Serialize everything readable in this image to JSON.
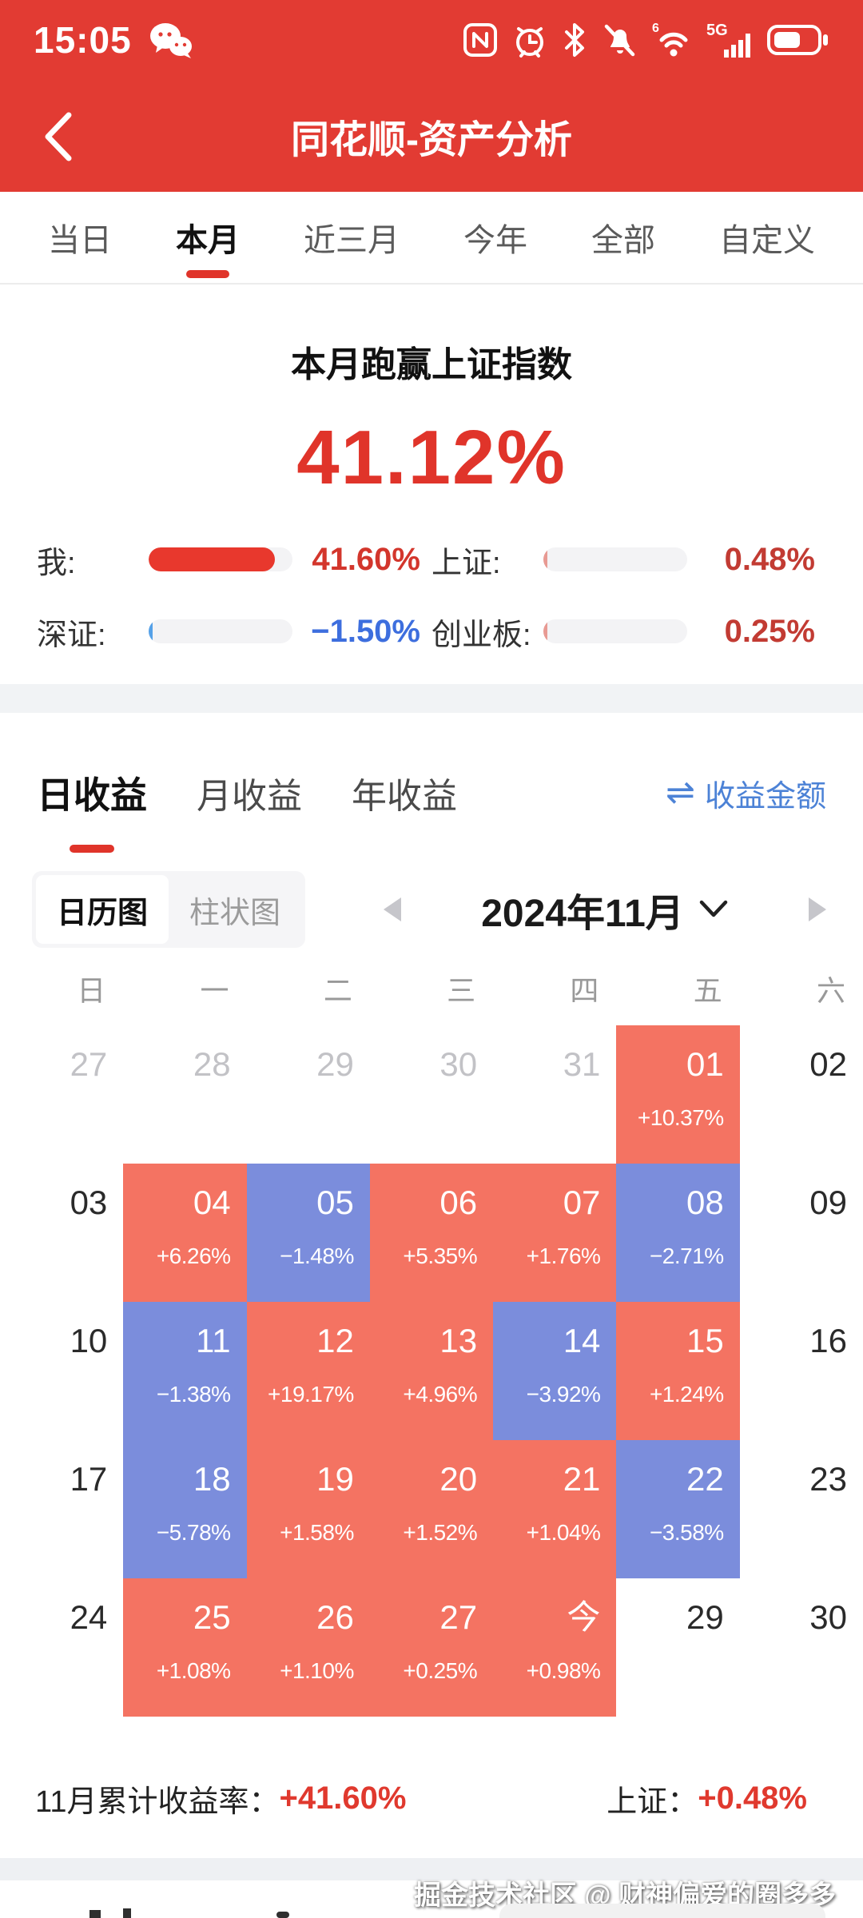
{
  "status_bar": {
    "time": "15:05",
    "icons": [
      "wechat-icon",
      "nfc-icon",
      "alarm-icon",
      "bluetooth-icon",
      "mute-icon",
      "wifi6-icon",
      "signal-5g-icon",
      "battery-icon"
    ]
  },
  "header": {
    "title": "同花顺-资产分析"
  },
  "range_tabs": [
    {
      "label": "当日",
      "active": false
    },
    {
      "label": "本月",
      "active": true
    },
    {
      "label": "近三月",
      "active": false
    },
    {
      "label": "今年",
      "active": false
    },
    {
      "label": "全部",
      "active": false
    },
    {
      "label": "自定义",
      "active": false
    }
  ],
  "hero": {
    "headline": "本月跑赢上证指数",
    "value": "41.12%"
  },
  "comparison": [
    {
      "label": "我:",
      "value": "41.60%",
      "value_color": "#d3362c",
      "bar_color": "#e8382d",
      "bar_pct": 88
    },
    {
      "label": "上证:",
      "value": "0.48%",
      "value_color": "#c23b33",
      "bar_color": "#e89a93",
      "bar_pct": 3
    },
    {
      "label": "深证:",
      "value": "−1.50%",
      "value_color": "#3d6ede",
      "bar_color": "#55a1e8",
      "bar_pct": 3
    },
    {
      "label": "创业板:",
      "value": "0.25%",
      "value_color": "#c23b33",
      "bar_color": "#e89a93",
      "bar_pct": 3
    }
  ],
  "income_section": {
    "tabs": [
      {
        "label": "日收益",
        "active": true
      },
      {
        "label": "月收益",
        "active": false
      },
      {
        "label": "年收益",
        "active": false
      }
    ],
    "amount_link": {
      "icon": "swap-icon",
      "label": "收益金额"
    }
  },
  "calendar": {
    "view_tabs": [
      {
        "label": "日历图",
        "active": true
      },
      {
        "label": "柱状图",
        "active": false
      }
    ],
    "month_label": "2024年11月",
    "weekdays": [
      "日",
      "一",
      "二",
      "三",
      "四",
      "五",
      "六"
    ],
    "cell_colors": {
      "up": "#f47362",
      "down": "#7b8ddc"
    },
    "weeks": [
      [
        {
          "day": "27",
          "type": "prev"
        },
        {
          "day": "28",
          "type": "prev"
        },
        {
          "day": "29",
          "type": "prev"
        },
        {
          "day": "30",
          "type": "prev"
        },
        {
          "day": "31",
          "type": "prev"
        },
        {
          "day": "01",
          "type": "up",
          "change": "+10.37%"
        },
        {
          "day": "02",
          "type": "plain"
        }
      ],
      [
        {
          "day": "03",
          "type": "plain"
        },
        {
          "day": "04",
          "type": "up",
          "change": "+6.26%"
        },
        {
          "day": "05",
          "type": "down",
          "change": "−1.48%"
        },
        {
          "day": "06",
          "type": "up",
          "change": "+5.35%"
        },
        {
          "day": "07",
          "type": "up",
          "change": "+1.76%"
        },
        {
          "day": "08",
          "type": "down",
          "change": "−2.71%"
        },
        {
          "day": "09",
          "type": "plain"
        }
      ],
      [
        {
          "day": "10",
          "type": "plain"
        },
        {
          "day": "11",
          "type": "down",
          "change": "−1.38%"
        },
        {
          "day": "12",
          "type": "up",
          "change": "+19.17%"
        },
        {
          "day": "13",
          "type": "up",
          "change": "+4.96%"
        },
        {
          "day": "14",
          "type": "down",
          "change": "−3.92%"
        },
        {
          "day": "15",
          "type": "up",
          "change": "+1.24%"
        },
        {
          "day": "16",
          "type": "plain"
        }
      ],
      [
        {
          "day": "17",
          "type": "plain"
        },
        {
          "day": "18",
          "type": "down",
          "change": "−5.78%"
        },
        {
          "day": "19",
          "type": "up",
          "change": "+1.58%"
        },
        {
          "day": "20",
          "type": "up",
          "change": "+1.52%"
        },
        {
          "day": "21",
          "type": "up",
          "change": "+1.04%"
        },
        {
          "day": "22",
          "type": "down",
          "change": "−3.58%"
        },
        {
          "day": "23",
          "type": "plain"
        }
      ],
      [
        {
          "day": "24",
          "type": "plain"
        },
        {
          "day": "25",
          "type": "up",
          "change": "+1.08%"
        },
        {
          "day": "26",
          "type": "up",
          "change": "+1.10%"
        },
        {
          "day": "27",
          "type": "up",
          "change": "+0.25%"
        },
        {
          "day": "今",
          "type": "up",
          "change": "+0.98%"
        },
        {
          "day": "29",
          "type": "plain"
        },
        {
          "day": "30",
          "type": "plain"
        }
      ]
    ],
    "summary": {
      "left_label": "11月累计收益率：",
      "left_value": "+41.60%",
      "right_label": "上证：",
      "right_value": "+0.48%"
    }
  },
  "watermark": "掘金技术社区 @ 财神偏爱的圈多多",
  "colors": {
    "brand_red": "#e23b33",
    "accent_red": "#e0342a",
    "cal_up": "#f47362",
    "cal_down": "#7b8ddc",
    "link_blue": "#4c82d6"
  }
}
